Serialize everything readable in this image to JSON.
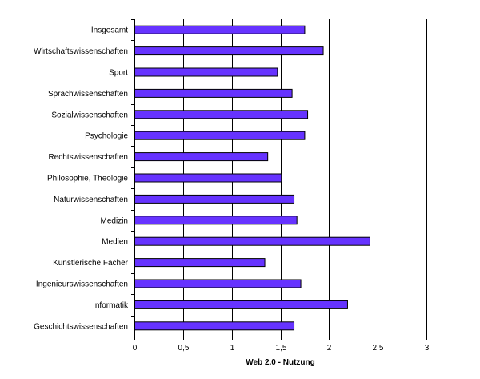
{
  "chart_data": {
    "type": "bar",
    "orientation": "horizontal",
    "categories": [
      "Insgesamt",
      "Wirtschaftswissenschaften",
      "Sport",
      "Sprachwissenschaften",
      "Sozialwissenschaften",
      "Psychologie",
      "Rechtswissenschaften",
      "Philosophie, Theologie",
      "Naturwissenschaften",
      "Medizin",
      "Medien",
      "Künstlerische Fächer",
      "Ingenieurswissenschaften",
      "Informatik",
      "Geschichtswissenschaften"
    ],
    "values": [
      1.75,
      1.94,
      1.47,
      1.62,
      1.78,
      1.75,
      1.37,
      1.51,
      1.64,
      1.67,
      2.42,
      1.34,
      1.71,
      2.19,
      1.64
    ],
    "xlabel": "Web 2.0 - Nutzung",
    "xlim": [
      0,
      3
    ],
    "x_ticks": [
      "0",
      "0,5",
      "1",
      "1,5",
      "2",
      "2,5",
      "3"
    ],
    "x_tick_values": [
      0,
      0.5,
      1,
      1.5,
      2,
      2.5,
      3
    ],
    "grid": "vertical",
    "bar_color": "#6633ff",
    "bar_border_color": "#000000"
  }
}
